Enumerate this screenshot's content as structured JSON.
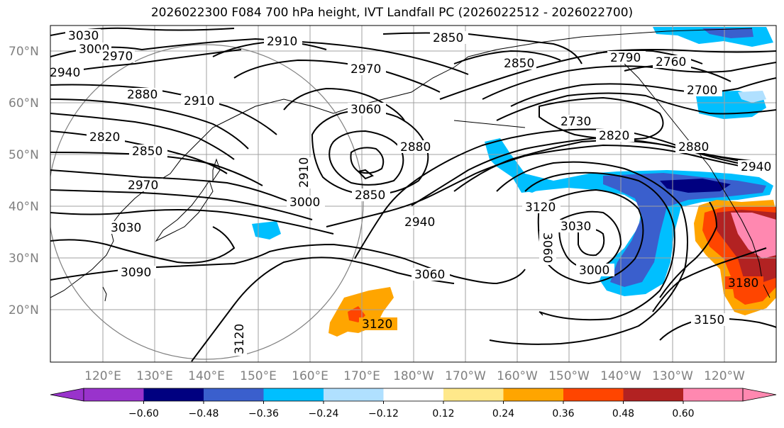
{
  "title": "2026022300 F084 700 hPa height, IVT Landfall PC (2026022512 - 2026022700)",
  "latitude_labels": [
    "70°N",
    "60°N",
    "50°N",
    "40°N",
    "30°N",
    "20°N"
  ],
  "longitude_labels": [
    "120°E",
    "130°E",
    "140°E",
    "150°E",
    "160°E",
    "170°E",
    "180°W",
    "170°W",
    "160°W",
    "150°W",
    "140°W",
    "130°W",
    "120°W"
  ],
  "colorbar": {
    "tick_labels": [
      "−0.60",
      "−0.48",
      "−0.36",
      "−0.24",
      "−0.12",
      "0.12",
      "0.24",
      "0.36",
      "0.48",
      "0.60"
    ],
    "colors": [
      "#9933cc",
      "#000080",
      "#3a5fcd",
      "#00bfff",
      "#b0e0ff",
      "#ffffff",
      "#ffe88a",
      "#ffa500",
      "#ff4500",
      "#b22222",
      "#ff88b0"
    ]
  },
  "contour_labels": [
    {
      "text": "3030"
    },
    {
      "text": "3000"
    },
    {
      "text": "2970"
    },
    {
      "text": "2940"
    },
    {
      "text": "2910"
    },
    {
      "text": "2850"
    },
    {
      "text": "2970"
    },
    {
      "text": "2850"
    },
    {
      "text": "2790"
    },
    {
      "text": "2760"
    },
    {
      "text": "2700"
    },
    {
      "text": "2880"
    },
    {
      "text": "2910"
    },
    {
      "text": "3060"
    },
    {
      "text": "2730"
    },
    {
      "text": "2820"
    },
    {
      "text": "2820"
    },
    {
      "text": "2850"
    },
    {
      "text": "2880"
    },
    {
      "text": "2880"
    },
    {
      "text": "2940"
    },
    {
      "text": "2910"
    },
    {
      "text": "2970"
    },
    {
      "text": "2850"
    },
    {
      "text": "3000"
    },
    {
      "text": "3120"
    },
    {
      "text": "3030"
    },
    {
      "text": "3030"
    },
    {
      "text": "2940"
    },
    {
      "text": "3060"
    },
    {
      "text": "3000"
    },
    {
      "text": "3090"
    },
    {
      "text": "3060"
    },
    {
      "text": "3180"
    },
    {
      "text": "3150"
    },
    {
      "text": "3120"
    },
    {
      "text": "3120"
    }
  ]
}
